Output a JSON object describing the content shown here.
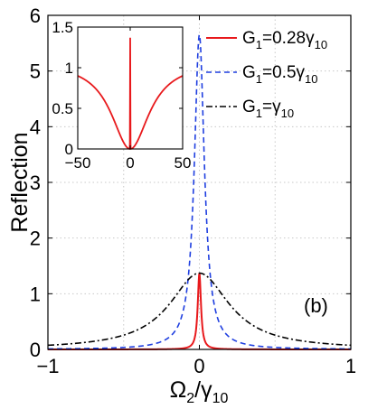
{
  "chart_data": [
    {
      "type": "line",
      "panel_label": "(b)",
      "ylabel": "Reflection",
      "xlabel": {
        "main": "Ω",
        "sub1": "2",
        "sep": "/γ",
        "sub2": "10"
      },
      "xlim": [
        -1,
        1
      ],
      "ylim": [
        0,
        6
      ],
      "xticks": [
        "−1",
        "0",
        "1"
      ],
      "yticks": [
        "0",
        "1",
        "2",
        "3",
        "4",
        "5",
        "6"
      ],
      "grid": true,
      "legend": "top-right",
      "series": [
        {
          "name": {
            "base": "G",
            "sub": "1",
            "rest": "=0.28γ",
            "sub2": "10"
          },
          "color": "#e8191c",
          "dash": "solid",
          "peak": 1.37,
          "hwhm": 0.013
        },
        {
          "name": {
            "base": "G",
            "sub": "1",
            "rest": "=0.5γ",
            "sub2": "10"
          },
          "color": "#1f3fe0",
          "dash": "dashed",
          "peak": 5.65,
          "hwhm": 0.04
        },
        {
          "name": {
            "base": "G",
            "sub": "1",
            "rest": "=γ",
            "sub2": "10"
          },
          "color": "#000000",
          "dash": "dashdot",
          "peak": 1.37,
          "hwhm": 0.24
        }
      ]
    },
    {
      "type": "line",
      "role": "inset",
      "xlim": [
        -50,
        50
      ],
      "ylim": [
        0,
        1.5
      ],
      "xticks": [
        "−50",
        "0",
        "50"
      ],
      "yticks": [
        "0",
        "0.5",
        "1",
        "1.5"
      ],
      "grid": false,
      "series": [
        {
          "color": "#e8191c",
          "spike_peak": 1.37,
          "edge_value": 0.9
        }
      ]
    }
  ]
}
